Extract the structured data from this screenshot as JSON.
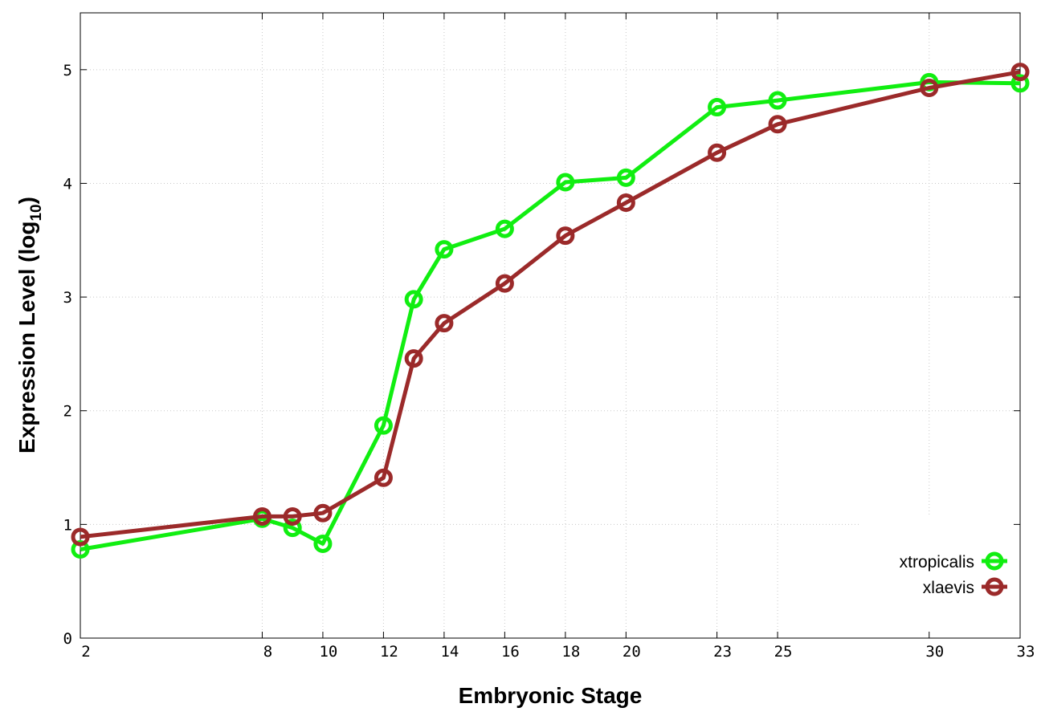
{
  "chart_data": {
    "type": "line",
    "xlabel": "Embryonic Stage",
    "ylabel_main": "Expression Level (log",
    "ylabel_sub": "10",
    "ylabel_close": ")",
    "xlim": [
      2,
      33
    ],
    "ylim": [
      0,
      5.5
    ],
    "x_ticks": [
      {
        "value": 2,
        "label": "2"
      },
      {
        "value": 8,
        "label": "8"
      },
      {
        "value": 10,
        "label": "10"
      },
      {
        "value": 12,
        "label": "12"
      },
      {
        "value": 14,
        "label": "14"
      },
      {
        "value": 16,
        "label": "16"
      },
      {
        "value": 18,
        "label": "18"
      },
      {
        "value": 20,
        "label": "20"
      },
      {
        "value": 23,
        "label": "23"
      },
      {
        "value": 25,
        "label": "25"
      },
      {
        "value": 30,
        "label": "30"
      },
      {
        "value": 33,
        "label": "33"
      }
    ],
    "y_ticks": [
      {
        "value": 0,
        "label": "0"
      },
      {
        "value": 1,
        "label": "1"
      },
      {
        "value": 2,
        "label": "2"
      },
      {
        "value": 3,
        "label": "3"
      },
      {
        "value": 4,
        "label": "4"
      },
      {
        "value": 5,
        "label": "5"
      }
    ],
    "grid": true,
    "legend_position": "bottom-right",
    "series": [
      {
        "name": "xtropicalis",
        "color": "#11ee11",
        "points": [
          {
            "x": 2,
            "y": 0.78
          },
          {
            "x": 8,
            "y": 1.05
          },
          {
            "x": 9,
            "y": 0.97
          },
          {
            "x": 10,
            "y": 0.83
          },
          {
            "x": 12,
            "y": 1.87
          },
          {
            "x": 13,
            "y": 2.98
          },
          {
            "x": 14,
            "y": 3.42
          },
          {
            "x": 16,
            "y": 3.6
          },
          {
            "x": 18,
            "y": 4.01
          },
          {
            "x": 20,
            "y": 4.05
          },
          {
            "x": 23,
            "y": 4.67
          },
          {
            "x": 25,
            "y": 4.73
          },
          {
            "x": 30,
            "y": 4.89
          },
          {
            "x": 33,
            "y": 4.88
          }
        ]
      },
      {
        "name": "xlaevis",
        "color": "#9b2a2a",
        "points": [
          {
            "x": 2,
            "y": 0.89
          },
          {
            "x": 8,
            "y": 1.07
          },
          {
            "x": 9,
            "y": 1.07
          },
          {
            "x": 10,
            "y": 1.1
          },
          {
            "x": 12,
            "y": 1.41
          },
          {
            "x": 13,
            "y": 2.46
          },
          {
            "x": 14,
            "y": 2.77
          },
          {
            "x": 16,
            "y": 3.12
          },
          {
            "x": 18,
            "y": 3.54
          },
          {
            "x": 20,
            "y": 3.83
          },
          {
            "x": 23,
            "y": 4.27
          },
          {
            "x": 25,
            "y": 4.52
          },
          {
            "x": 30,
            "y": 4.84
          },
          {
            "x": 33,
            "y": 4.98
          }
        ]
      }
    ]
  }
}
